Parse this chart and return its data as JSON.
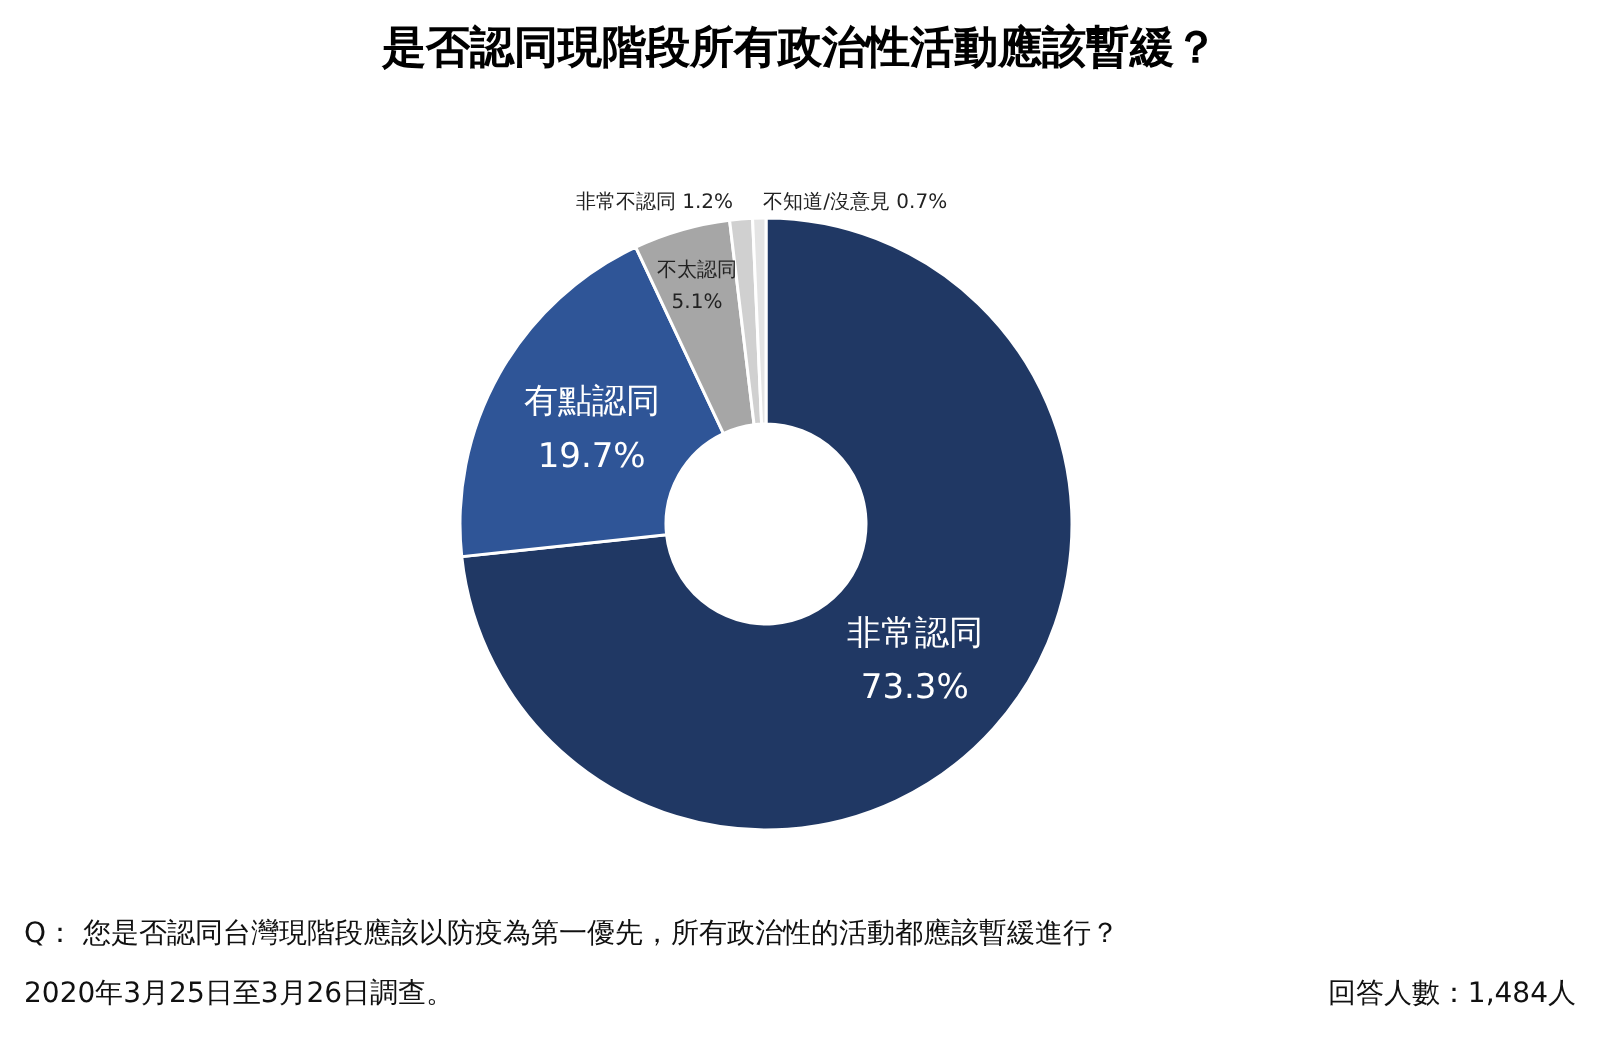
{
  "chart_data": {
    "type": "donut",
    "title": "是否認同現階段所有政治性活動應該暫緩？",
    "categories": [
      "非常認同",
      "有點認同",
      "不太認同",
      "非常不認同",
      "不知道/沒意見"
    ],
    "values": [
      73.3,
      19.7,
      5.1,
      1.2,
      0.7
    ],
    "value_labels": [
      "73.3%",
      "19.7%",
      "5.1%",
      "1.2%",
      "0.7%"
    ],
    "colors": [
      "#203864",
      "#2f5597",
      "#a6a6a6",
      "#d0d0d0",
      "#e4e4e4"
    ],
    "annotations": [
      "Q：  您是否認同台灣現階段應該以防疫為第一優先，所有政治性的活動都應該暫緩進行？",
      "2020年3月25日至3月26日調查。",
      "回答人數：1,484人"
    ]
  }
}
